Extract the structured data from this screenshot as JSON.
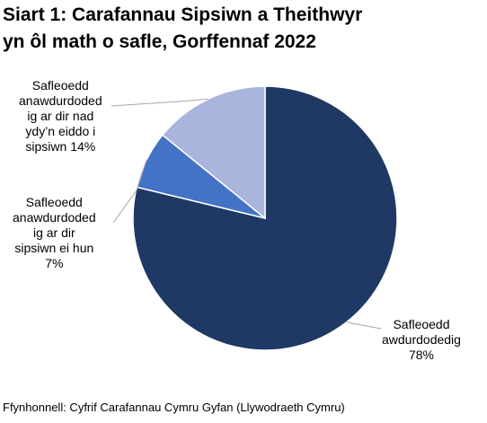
{
  "chart_data": {
    "type": "pie",
    "title_lines": [
      "Siart 1: Carafannau Sipsiwn a Theithwyr",
      "yn ôl math o safle, Gorffennaf 2022"
    ],
    "slices": [
      {
        "label_lines": [
          "Safleoedd",
          "awdurdodedig",
          "78%"
        ],
        "value": 78,
        "color": "#203864"
      },
      {
        "label_lines": [
          "Safleoedd",
          "anawdurdoded",
          "ig ar dir",
          "sipsiwn ei hun",
          "7%"
        ],
        "value": 7,
        "color": "#4472c4"
      },
      {
        "label_lines": [
          "Safleoedd",
          "anawdurdoded",
          "ig ar dir nad",
          "ydy’n eiddo i",
          "sipsiwn 14%"
        ],
        "value": 14,
        "color": "#a9b5dc"
      }
    ],
    "start_angle": "12 o'clock",
    "direction": "clockwise",
    "source": "Ffynhonnell: Cyfrif Carafannau Cymru Gyfan (Llywodraeth Cymru)"
  }
}
